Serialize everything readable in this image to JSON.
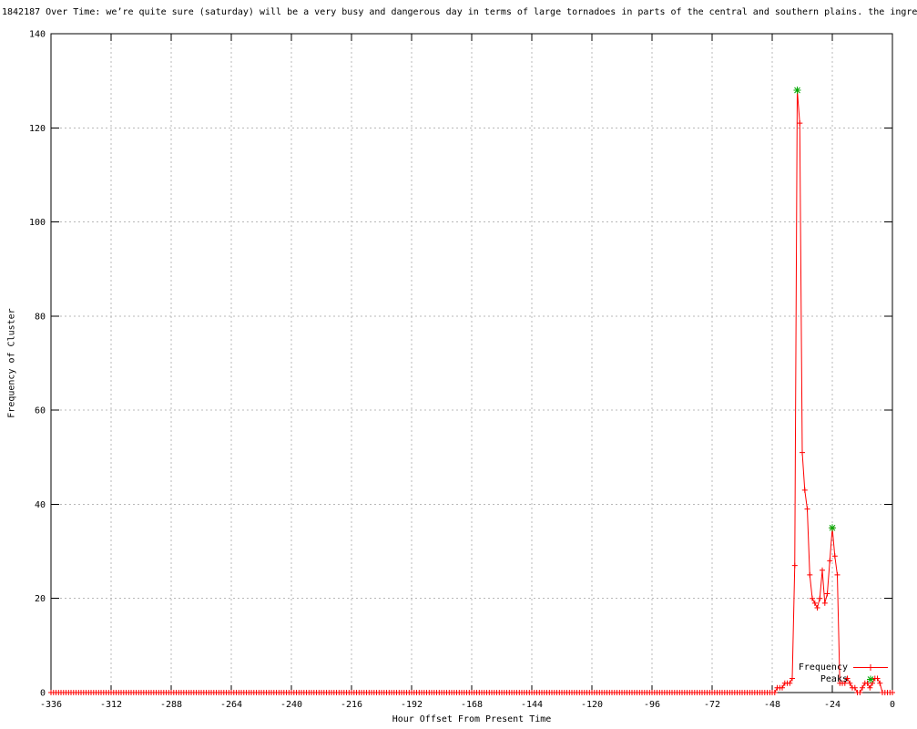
{
  "chart_data": {
    "type": "line",
    "title": "1842187 Over Time: we’re quite sure (saturday) will be a very busy and dangerous day in terms of large tornadoes in parts of the central and southern plains. the ingre",
    "xlabel": "Hour Offset From Present Time",
    "ylabel": "Frequency of Cluster",
    "xlim": [
      -336,
      0
    ],
    "ylim": [
      0,
      140
    ],
    "xticks": [
      -336,
      -312,
      -288,
      -264,
      -240,
      -216,
      -192,
      -168,
      -144,
      -120,
      -96,
      -72,
      -48,
      -24,
      0
    ],
    "yticks": [
      0,
      20,
      40,
      60,
      80,
      100,
      120,
      140
    ],
    "grid": true,
    "legend_position": "inside-bottom-right",
    "colors": {
      "background": "#ffffff",
      "axis": "#000000",
      "grid": "#b8b8b8",
      "frequency_line": "#ff0000",
      "peaks_marker": "#00a800"
    },
    "series": [
      {
        "name": "Frequency",
        "color": "#ff0000",
        "marker": "plus",
        "style": "linespoints",
        "x_start": -336,
        "x_end": 0,
        "x_step": 1,
        "default_value": 0,
        "nonzero_values": {
          "-46": 1,
          "-45": 1,
          "-44": 1,
          "-43": 2,
          "-42": 2,
          "-41": 2,
          "-40": 3,
          "-39": 27,
          "-38": 128,
          "-37": 121,
          "-36": 51,
          "-35": 43,
          "-34": 39,
          "-33": 25,
          "-32": 20,
          "-31": 19,
          "-30": 18,
          "-29": 20,
          "-28": 26,
          "-27": 19,
          "-26": 21,
          "-25": 28,
          "-24": 35,
          "-23": 29,
          "-22": 25,
          "-21": 2,
          "-20": 2,
          "-19": 2,
          "-18": 3,
          "-17": 2,
          "-16": 1,
          "-15": 1,
          "-12": 1,
          "-11": 2,
          "-10": 2,
          "-9": 1,
          "-8": 2,
          "-7": 3,
          "-6": 3,
          "-5": 2
        }
      },
      {
        "name": "Peaks",
        "color": "#00a800",
        "marker": "asterisk",
        "style": "points",
        "points": [
          [
            -38,
            128
          ],
          [
            -24,
            35
          ]
        ]
      }
    ]
  }
}
